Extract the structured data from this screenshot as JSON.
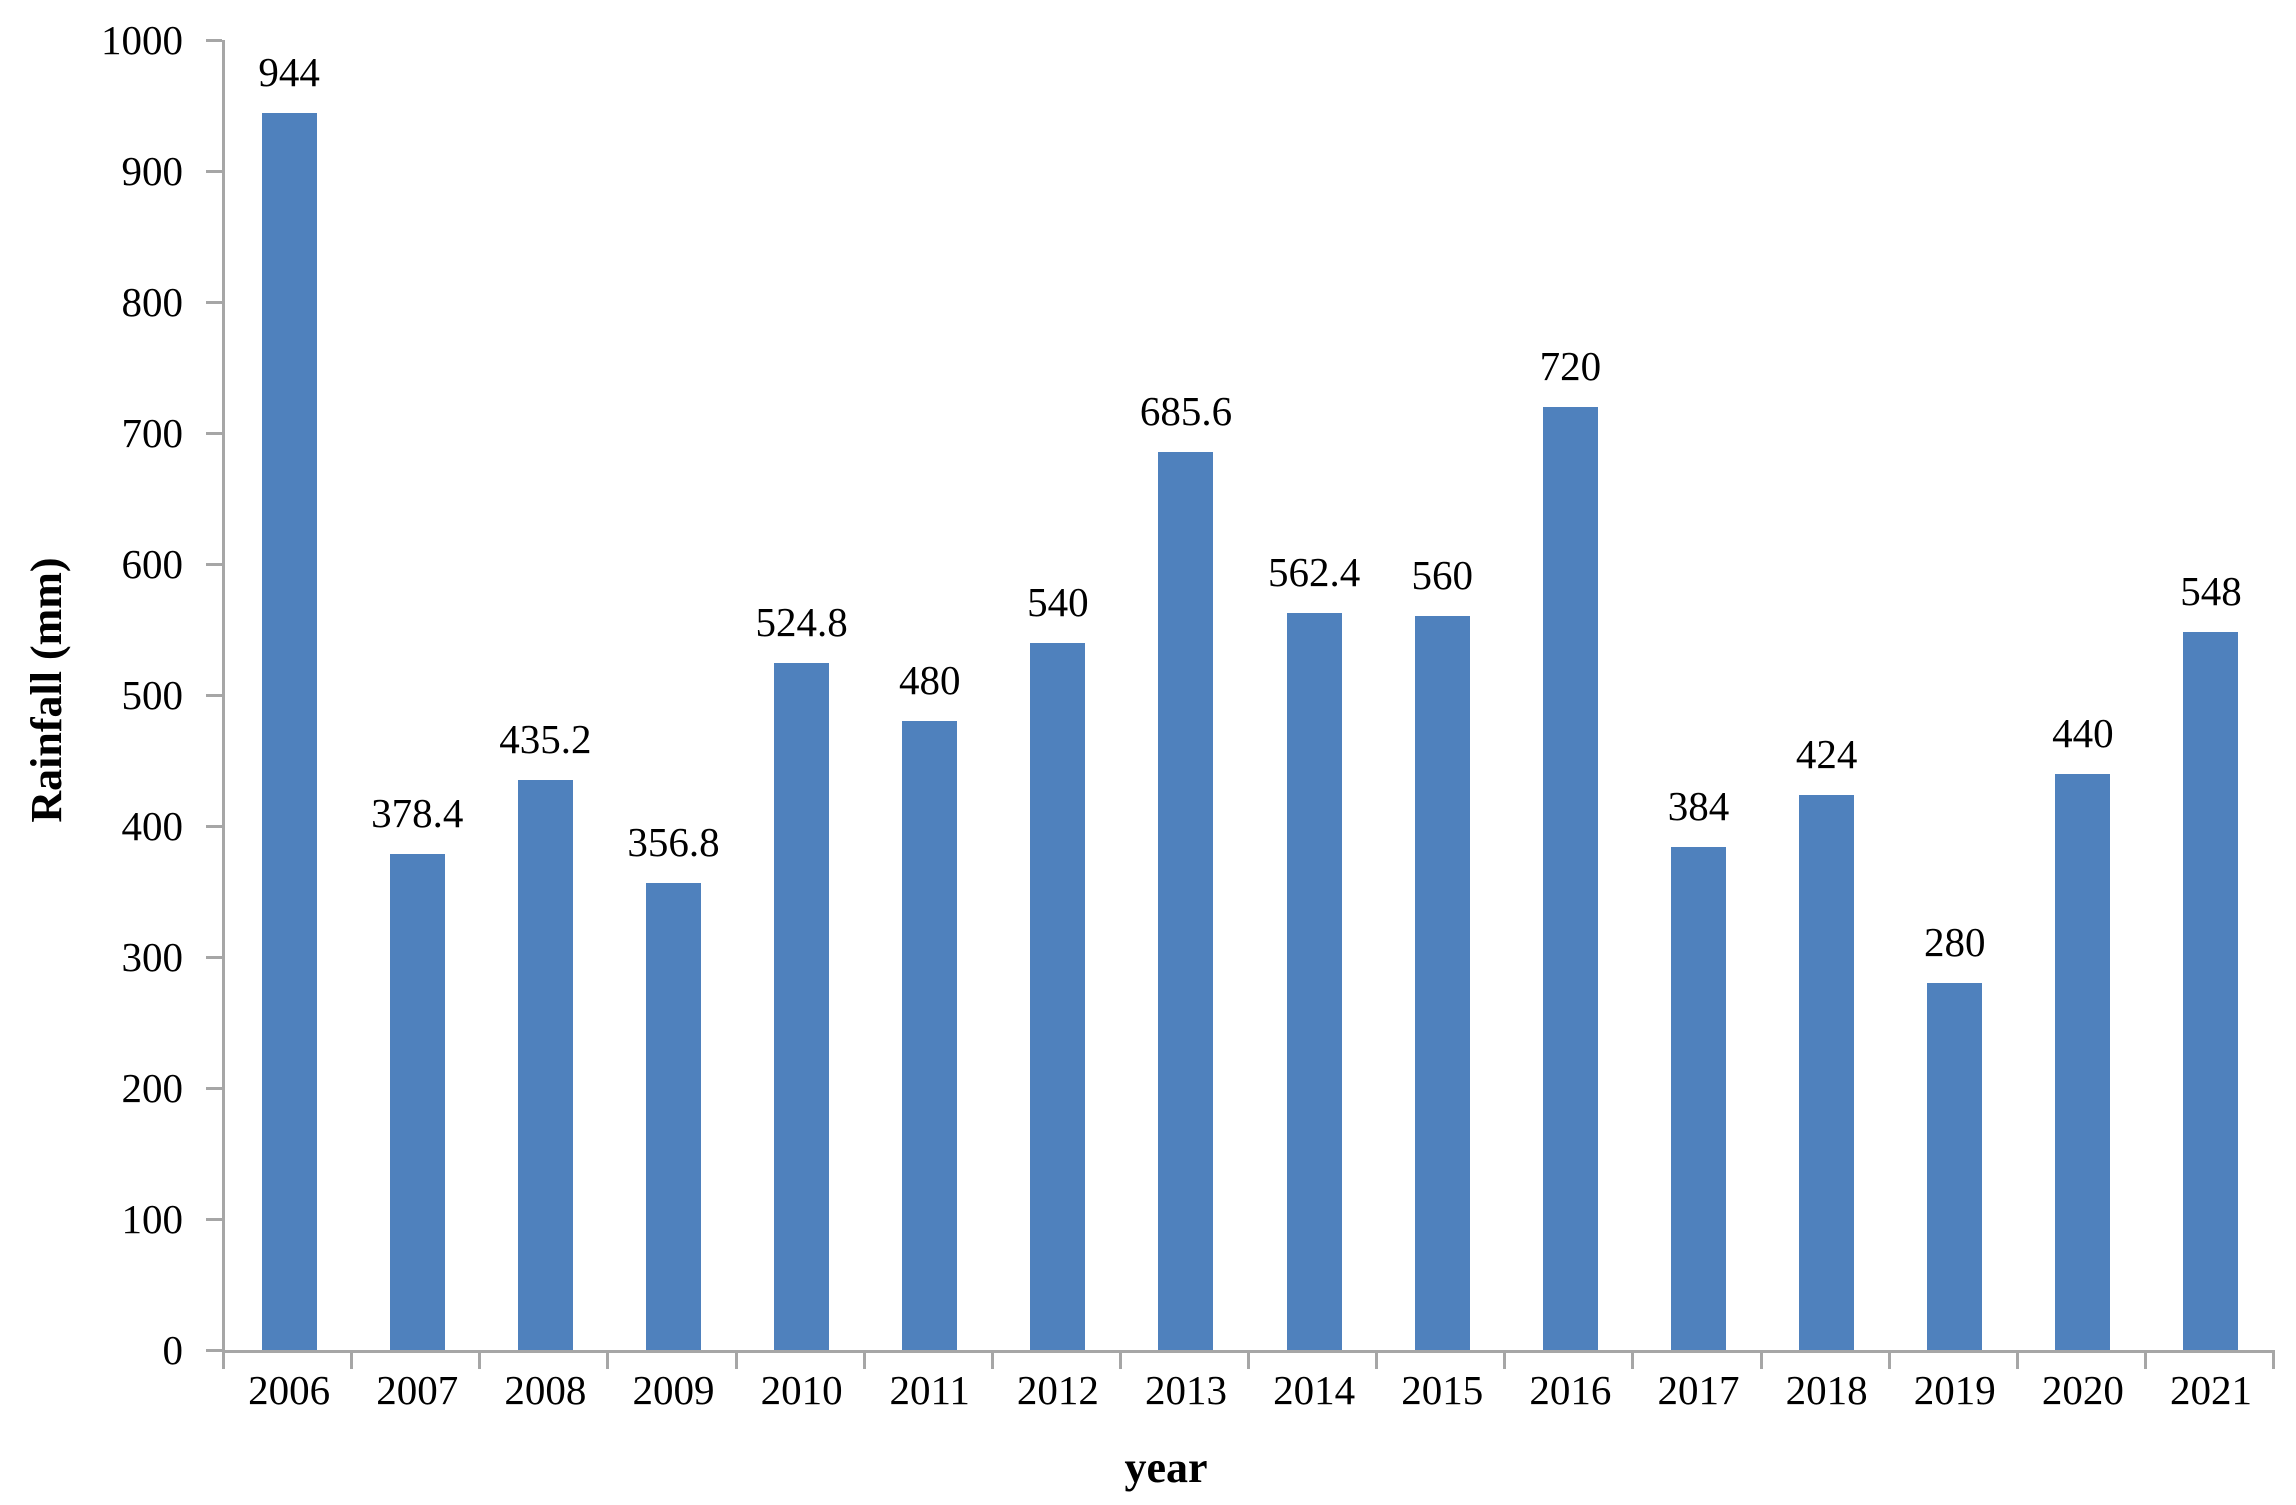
{
  "chart_data": {
    "type": "bar",
    "title": "",
    "xlabel": "year",
    "ylabel": "Rainfall (mm)",
    "categories": [
      "2006",
      "2007",
      "2008",
      "2009",
      "2010",
      "2011",
      "2012",
      "2013",
      "2014",
      "2015",
      "2016",
      "2017",
      "2018",
      "2019",
      "2020",
      "2021"
    ],
    "values": [
      944,
      378.4,
      435.2,
      356.8,
      524.8,
      480,
      540,
      685.6,
      562.4,
      560,
      720,
      384,
      424,
      280,
      440,
      548
    ],
    "value_labels": [
      "944",
      "378.4",
      "435.2",
      "356.8",
      "524.8",
      "480",
      "540",
      "685.6",
      "562.4",
      "560",
      "720",
      "384",
      "424",
      "280",
      "440",
      "548"
    ],
    "ylim": [
      0,
      1000
    ],
    "ytick_interval": 100,
    "ytick_labels": [
      "0",
      "100",
      "200",
      "300",
      "400",
      "500",
      "600",
      "700",
      "800",
      "900",
      "1000"
    ],
    "grid": false,
    "legend": false,
    "bar_color": "#4F81BD",
    "axis_color": "#A6A6A6",
    "tick_color": "#A6A6A6",
    "text_color": "#000000",
    "background_color": "#FFFFFF"
  }
}
